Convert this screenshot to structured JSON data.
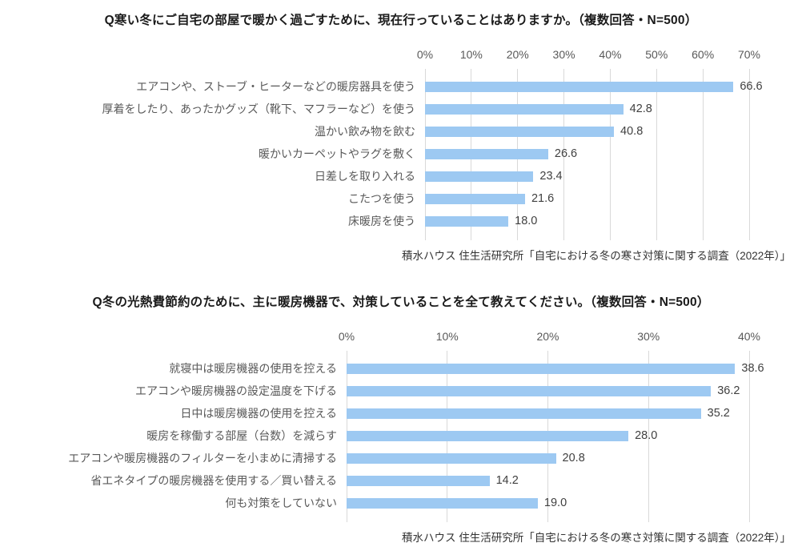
{
  "page": {
    "background": "#ffffff",
    "bar_color": "#9DC9F2",
    "gridline_color": "#D9D9D9",
    "axis_text_color": "#595959",
    "value_text_color": "#404040"
  },
  "chart_data": [
    {
      "type": "bar",
      "orientation": "horizontal",
      "title": "Q寒い冬にご自宅の部屋で暖かく過ごすために、現在行っていることはありますか。（複数回答・N=500）",
      "categories": [
        "エアコンや、ストーブ・ヒーターなどの暖房器具を使う",
        "厚着をしたり、あったかグッズ（靴下、マフラーなど）を使う",
        "温かい飲み物を飲む",
        "暖かいカーペットやラグを敷く",
        "日差しを取り入れる",
        "こたつを使う",
        "床暖房を使う"
      ],
      "values": [
        66.6,
        42.8,
        40.8,
        26.6,
        23.4,
        21.6,
        18.0
      ],
      "value_labels": [
        "66.6",
        "42.8",
        "40.8",
        "26.6",
        "23.4",
        "21.6",
        "18.0"
      ],
      "x_ticks": [
        "0%",
        "10%",
        "20%",
        "30%",
        "40%",
        "50%",
        "60%",
        "70%"
      ],
      "xlim": [
        0,
        70
      ],
      "grid": true,
      "legend": "none",
      "bar_color": "#9DC9F2",
      "source": "積水ハウス 住生活研究所「自宅における冬の寒さ対策に関する調査（2022年）」"
    },
    {
      "type": "bar",
      "orientation": "horizontal",
      "title": "Q冬の光熱費節約のために、主に暖房機器で、対策していることを全て教えてください。（複数回答・N=500）",
      "categories": [
        "就寝中は暖房機器の使用を控える",
        "エアコンや暖房機器の設定温度を下げる",
        "日中は暖房機器の使用を控える",
        "暖房を稼働する部屋（台数）を減らす",
        "エアコンや暖房機器のフィルターを小まめに清掃する",
        "省エネタイプの暖房機器を使用する／買い替える",
        "何も対策をしていない"
      ],
      "values": [
        38.6,
        36.2,
        35.2,
        28.0,
        20.8,
        14.2,
        19.0
      ],
      "value_labels": [
        "38.6",
        "36.2",
        "35.2",
        "28.0",
        "20.8",
        "14.2",
        "19.0"
      ],
      "x_ticks": [
        "0%",
        "10%",
        "20%",
        "30%",
        "40%"
      ],
      "xlim": [
        0,
        40
      ],
      "grid": true,
      "legend": "none",
      "bar_color": "#9DC9F2",
      "source": "積水ハウス 住生活研究所「自宅における冬の寒さ対策に関する調査（2022年）」"
    }
  ]
}
